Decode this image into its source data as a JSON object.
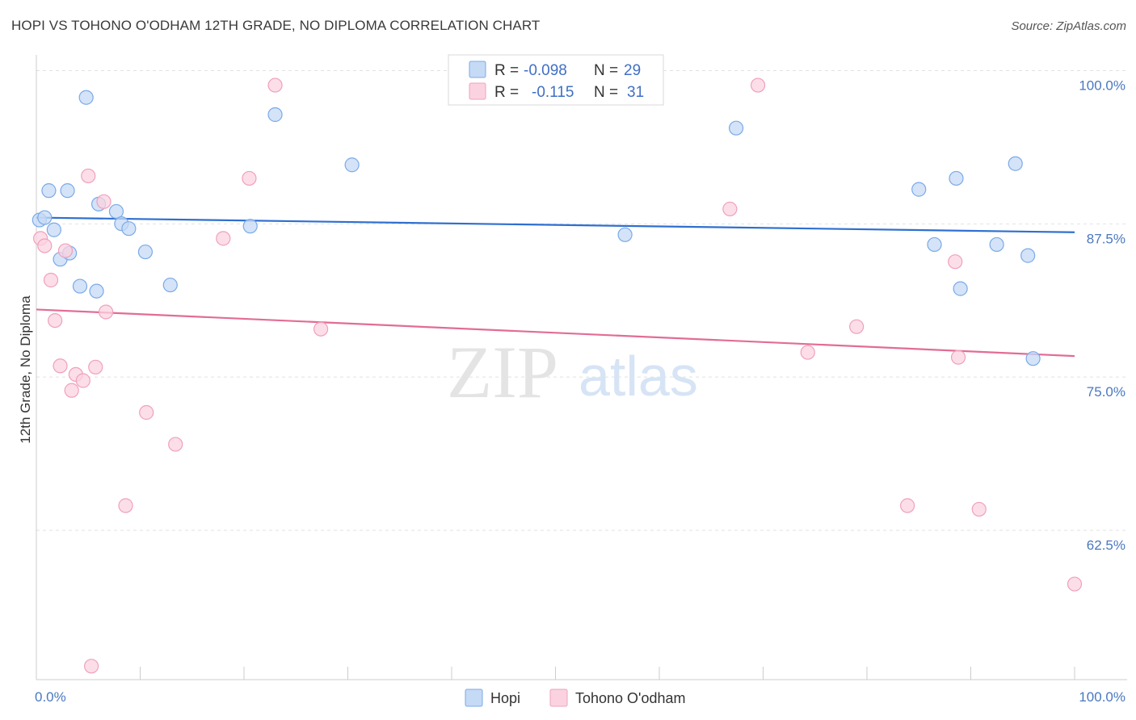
{
  "title": "HOPI VS TOHONO O'ODHAM 12TH GRADE, NO DIPLOMA CORRELATION CHART",
  "source": "Source: ZipAtlas.com",
  "watermark": {
    "zip": "ZIP",
    "atlas": "atlas"
  },
  "chart_data": {
    "type": "scatter",
    "ylabel": "12th Grade, No Diploma",
    "x_tick_labels": [
      "0.0%",
      "100.0%"
    ],
    "y_tick_labels": [
      "100.0%",
      "87.5%",
      "75.0%",
      "62.5%"
    ],
    "xlim": [
      0,
      100
    ],
    "ylim": [
      51.5,
      103
    ],
    "y_ticks": [
      100.0,
      87.5,
      75.0,
      62.5
    ],
    "legend": {
      "r_label": "R =",
      "n_label": "N =",
      "entries": [
        {
          "r": "-0.098",
          "n": "29"
        },
        {
          "r": "-0.115",
          "n": "31"
        }
      ]
    },
    "series": [
      {
        "name": "Hopi",
        "color": "#7aaae8",
        "fill": "#c5daf5",
        "line_color": "#2f6fd0",
        "trend": [
          [
            0,
            89.2
          ],
          [
            100,
            88.0
          ]
        ],
        "points": [
          [
            0.3,
            89.0
          ],
          [
            0.8,
            89.2
          ],
          [
            1.2,
            91.4
          ],
          [
            1.7,
            88.2
          ],
          [
            2.3,
            85.8
          ],
          [
            3.0,
            91.4
          ],
          [
            3.2,
            86.3
          ],
          [
            4.2,
            83.6
          ],
          [
            4.8,
            99.0
          ],
          [
            5.8,
            83.2
          ],
          [
            6.0,
            90.3
          ],
          [
            7.7,
            89.7
          ],
          [
            8.2,
            88.7
          ],
          [
            8.9,
            88.3
          ],
          [
            10.5,
            86.4
          ],
          [
            12.9,
            83.7
          ],
          [
            20.6,
            88.5
          ],
          [
            23.0,
            97.6
          ],
          [
            30.4,
            93.5
          ],
          [
            56.7,
            87.8
          ],
          [
            67.4,
            96.5
          ],
          [
            85.0,
            91.5
          ],
          [
            86.5,
            87.0
          ],
          [
            88.6,
            92.4
          ],
          [
            89.0,
            83.4
          ],
          [
            92.5,
            87.0
          ],
          [
            94.3,
            93.6
          ],
          [
            95.5,
            86.1
          ],
          [
            96.0,
            77.7
          ]
        ]
      },
      {
        "name": "Tohono O'odham",
        "color": "#f0a0bc",
        "fill": "#fbd3e0",
        "line_color": "#e26c96",
        "trend": [
          [
            0,
            81.7
          ],
          [
            100,
            77.9
          ]
        ],
        "points": [
          [
            0.4,
            87.5
          ],
          [
            0.8,
            86.9
          ],
          [
            1.4,
            84.1
          ],
          [
            1.8,
            80.8
          ],
          [
            2.3,
            77.1
          ],
          [
            3.4,
            75.1
          ],
          [
            3.8,
            76.4
          ],
          [
            4.5,
            75.9
          ],
          [
            5.0,
            92.6
          ],
          [
            5.7,
            77.0
          ],
          [
            6.5,
            90.5
          ],
          [
            6.7,
            81.5
          ],
          [
            2.8,
            86.5
          ],
          [
            8.6,
            65.7
          ],
          [
            10.6,
            73.3
          ],
          [
            13.4,
            70.7
          ],
          [
            18.0,
            87.5
          ],
          [
            20.5,
            92.4
          ],
          [
            23.0,
            100.0
          ],
          [
            27.4,
            80.1
          ],
          [
            47.3,
            100.0
          ],
          [
            66.8,
            89.9
          ],
          [
            69.5,
            100.0
          ],
          [
            74.3,
            78.2
          ],
          [
            79.0,
            80.3
          ],
          [
            83.9,
            65.7
          ],
          [
            88.5,
            85.6
          ],
          [
            88.8,
            77.8
          ],
          [
            90.8,
            65.4
          ],
          [
            100.0,
            59.3
          ],
          [
            5.3,
            52.6
          ]
        ]
      }
    ]
  }
}
